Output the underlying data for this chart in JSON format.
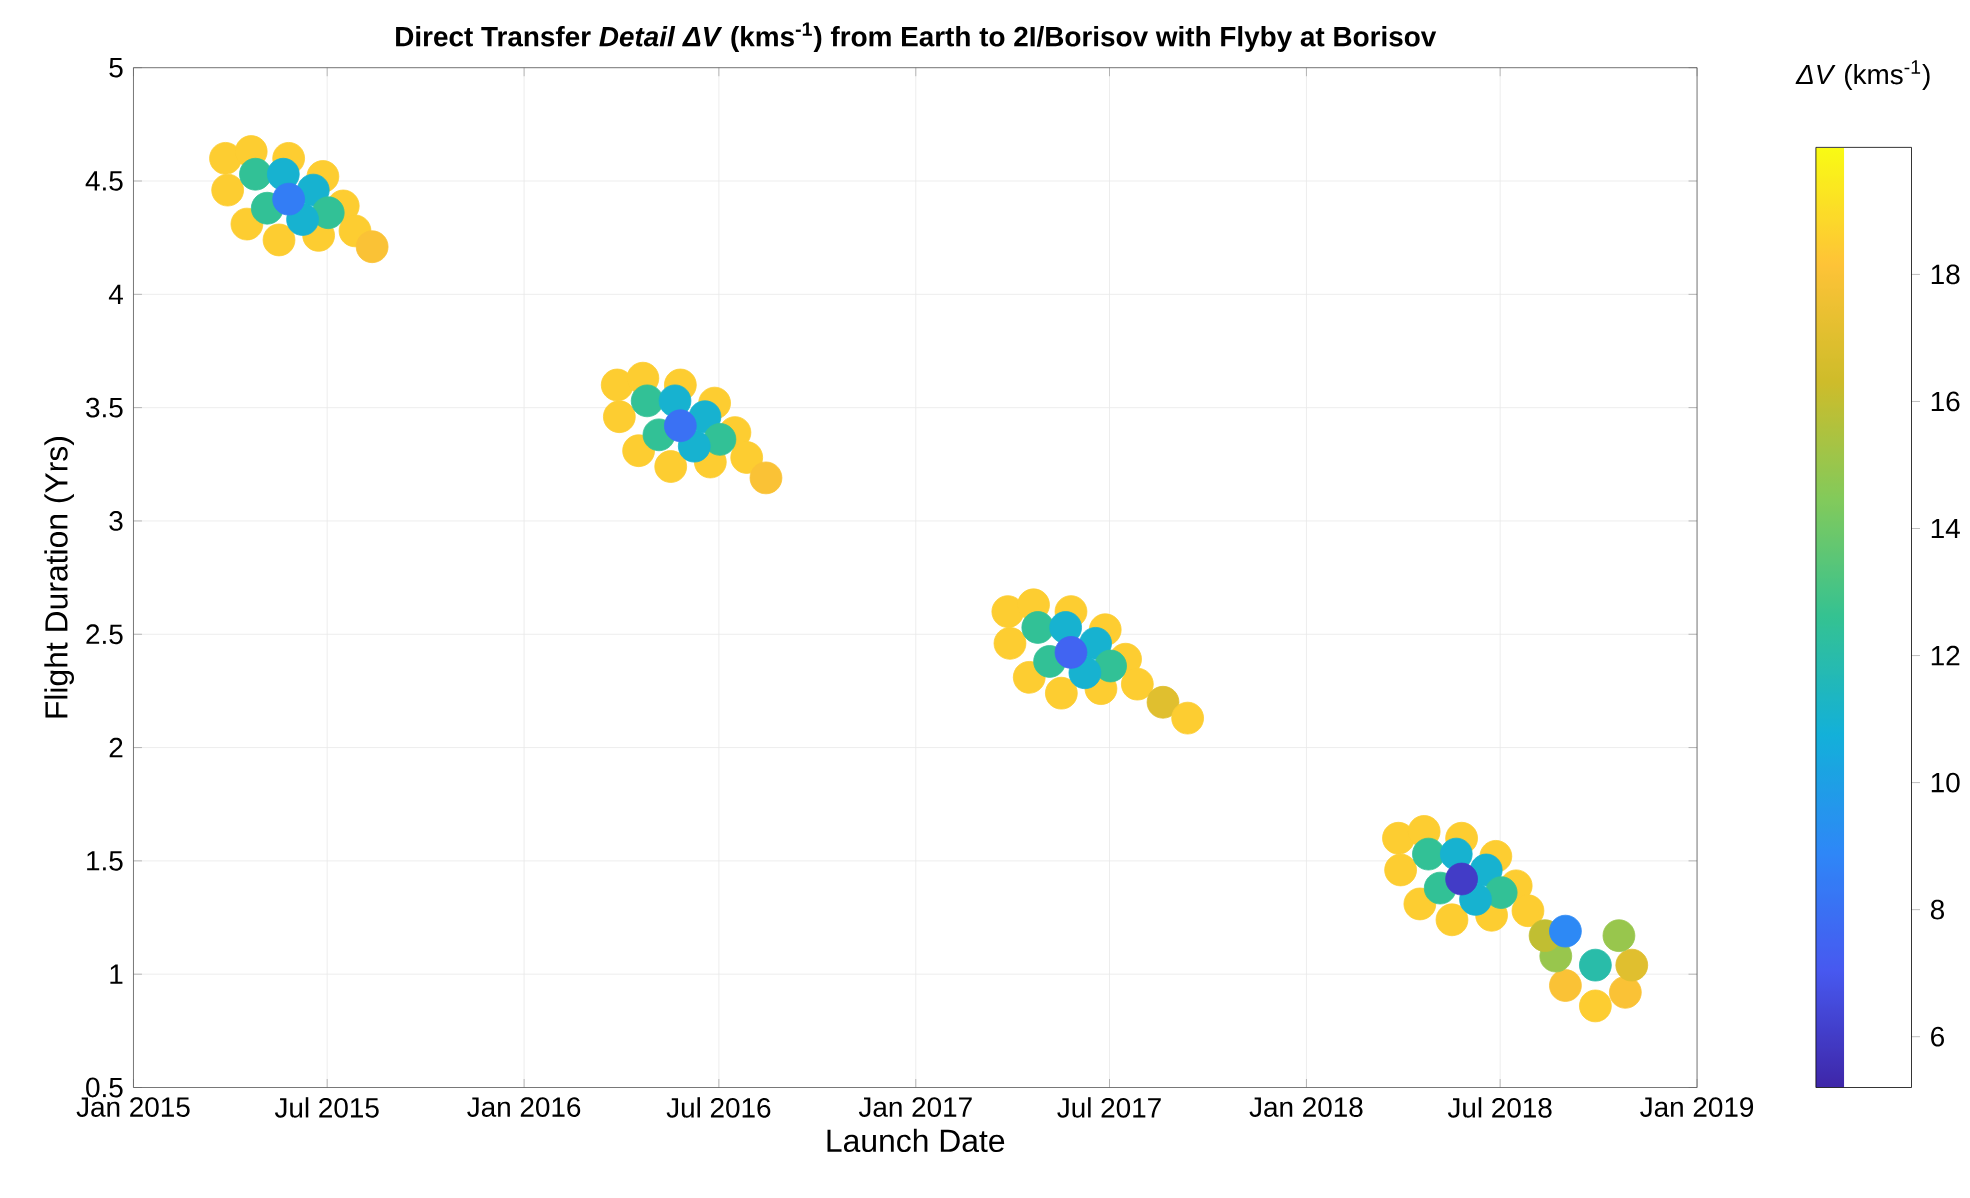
{
  "chart_data": {
    "type": "scatter",
    "title": "**Direct Transfer *Detail*  *ΔV* (kms$^{-1}$) from Earth to 2I/Borisov with Flyby at Borisov**",
    "xlabel": "Launch Date",
    "ylabel": "Flight Duration (Yrs)",
    "clabel": "*ΔV* (kms$^{-1}$)",
    "x": [
      "2015-03-28",
      "2015-04-21",
      "2015-05-26",
      "2015-06-27",
      "2015-07-16",
      "2015-07-27",
      "2015-06-23",
      "2015-05-17",
      "2015-04-17",
      "2015-03-30",
      "2015-04-25",
      "2015-05-21",
      "2015-06-18",
      "2015-07-02",
      "2015-06-08",
      "2015-05-06",
      "2015-05-26",
      "2015-08-12",
      "2016-03-28",
      "2016-04-21",
      "2016-05-26",
      "2016-06-27",
      "2016-07-16",
      "2016-07-27",
      "2016-06-23",
      "2016-05-17",
      "2016-04-17",
      "2016-03-30",
      "2016-04-25",
      "2016-05-21",
      "2016-06-18",
      "2016-07-02",
      "2016-06-08",
      "2016-05-06",
      "2016-05-26",
      "2016-08-14",
      "2017-03-28",
      "2017-04-21",
      "2017-05-26",
      "2017-06-27",
      "2017-07-16",
      "2017-07-27",
      "2017-06-23",
      "2017-05-17",
      "2017-04-17",
      "2017-03-30",
      "2017-04-25",
      "2017-05-21",
      "2017-06-18",
      "2017-07-02",
      "2017-06-08",
      "2017-05-06",
      "2017-05-26",
      "2017-08-20",
      "2017-09-12",
      "2018-03-28",
      "2018-04-21",
      "2018-05-26",
      "2018-06-27",
      "2018-07-16",
      "2018-07-27",
      "2018-06-23",
      "2018-05-17",
      "2018-04-17",
      "2018-03-30",
      "2018-04-25",
      "2018-05-21",
      "2018-06-18",
      "2018-07-02",
      "2018-06-08",
      "2018-05-06",
      "2018-05-26",
      "2018-09-28",
      "2018-08-31",
      "2018-10-26",
      "2018-11-01",
      "2018-10-20",
      "2018-08-22",
      "2018-08-12",
      "2018-09-28",
      "2018-08-31"
    ],
    "values": [
      4.6,
      4.63,
      4.6,
      4.52,
      4.39,
      4.28,
      4.26,
      4.24,
      4.31,
      4.46,
      4.53,
      4.53,
      4.46,
      4.36,
      4.33,
      4.38,
      4.42,
      4.21,
      3.6,
      3.63,
      3.6,
      3.52,
      3.39,
      3.28,
      3.26,
      3.24,
      3.31,
      3.46,
      3.53,
      3.53,
      3.46,
      3.36,
      3.33,
      3.38,
      3.42,
      3.19,
      2.6,
      2.63,
      2.6,
      2.52,
      2.39,
      2.28,
      2.26,
      2.24,
      2.31,
      2.46,
      2.53,
      2.53,
      2.46,
      2.36,
      2.33,
      2.38,
      2.42,
      2.2,
      2.13,
      1.6,
      1.63,
      1.6,
      1.52,
      1.39,
      1.28,
      1.26,
      1.24,
      1.31,
      1.46,
      1.53,
      1.53,
      1.46,
      1.36,
      1.33,
      1.38,
      1.42,
      0.86,
      0.95,
      0.92,
      1.04,
      1.17,
      1.08,
      1.17,
      1.04,
      1.19
    ],
    "cvalues": [
      18.5,
      18.5,
      18.5,
      18.5,
      18.5,
      18.5,
      18.5,
      18.5,
      18.5,
      18.5,
      12.5,
      11,
      11,
      12.5,
      11,
      12.5,
      8.5,
      18,
      18.5,
      18.5,
      18.5,
      18.5,
      18.5,
      18.5,
      18.5,
      18.5,
      18.5,
      18.5,
      12.5,
      11,
      11,
      12.5,
      11,
      12.5,
      8,
      18,
      18.5,
      18.5,
      18.5,
      18.5,
      18.5,
      18.5,
      18.5,
      18.5,
      18.5,
      18.5,
      12.5,
      11,
      11,
      12.5,
      11,
      12.5,
      7.5,
      17,
      18.5,
      18.5,
      18.5,
      18.5,
      18.5,
      18.5,
      18.5,
      18.5,
      18.5,
      18.5,
      18.5,
      12.5,
      11,
      11,
      12.5,
      11,
      12.5,
      6,
      18.5,
      18,
      18,
      17,
      15,
      15,
      16,
      12,
      9
    ],
    "marker": "circle",
    "xlim": [
      "2015-01",
      "2019-01"
    ],
    "xticks": [
      {
        "value": "2015-01",
        "label": "Jan 2015"
      },
      {
        "value": "2015-07",
        "label": "Jul 2015"
      },
      {
        "value": "2016-01",
        "label": "Jan 2016"
      },
      {
        "value": "2016-07",
        "label": "Jul 2016"
      },
      {
        "value": "2017-01",
        "label": "Jan 2017"
      },
      {
        "value": "2017-07",
        "label": "Jul 2017"
      },
      {
        "value": "2018-01",
        "label": "Jan 2018"
      },
      {
        "value": "2018-07",
        "label": "Jul 2018"
      },
      {
        "value": "2019-01",
        "label": "Jan 2019"
      }
    ],
    "ylim": [
      0.5,
      5
    ],
    "yticks": [
      0.5,
      1,
      1.5,
      2,
      2.5,
      3,
      3.5,
      4,
      4.5,
      5
    ],
    "clim": [
      5.2,
      20
    ],
    "cticks": [
      6,
      8,
      10,
      12,
      14,
      16,
      18
    ],
    "grid": true
  }
}
